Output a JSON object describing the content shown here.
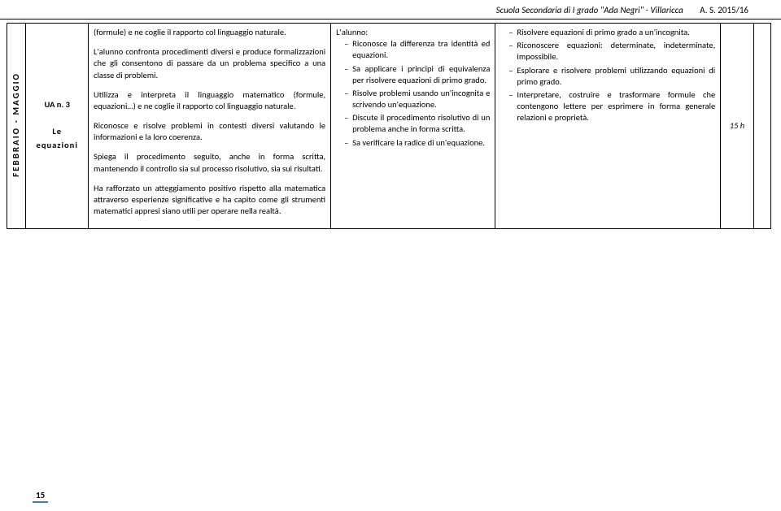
{
  "header": {
    "school": "Scuola Secondaria di I grado \"Ada Negri\" - Villaricca",
    "year": "A. S. 2015/16"
  },
  "row": {
    "period": "FEBBRAIO - MAGGIO",
    "ua_num": "UA n. 3",
    "ua_title": "Le equazioni",
    "desc_p1": "(formule) e ne coglie il rapporto col linguaggio naturale.",
    "desc_p2": "L'alunno confronta procedimenti diversi e produce formalizzazioni che gli consentono di passare da un problema specifico a una classe di problemi.",
    "desc_p3": "Utilizza e interpreta il linguaggio matematico (formule, equazioni…) e ne coglie il rapporto col linguaggio naturale.",
    "desc_p4": "Riconosce e risolve problemi in contesti diversi valutando le informazioni e la loro coerenza.",
    "desc_p5": "Spiega il procedimento seguito, anche in forma scritta, mantenendo il controllo sia sul processo risolutivo, sia sui risultati.",
    "desc_p6": "Ha rafforzato un atteggiamento positivo rispetto alla matematica attraverso esperienze significative e ha capito come gli strumenti matematici appresi siano utili per operare nella realtà.",
    "alunno_h": "L'alunno:",
    "alunno_items": {
      "i0": "Riconosce la differenza tra identità ed equazioni.",
      "i1": "Sa applicare i principi di equivalenza per risolvere equazioni di primo grado.",
      "i2": "Risolve problemi usando un'incognita e scrivendo un'equazione.",
      "i3": "Discute il procedimento risolutivo di un problema anche in forma scritta.",
      "i4": "Sa verificare la radice di un'equazione."
    },
    "obj_items": {
      "i0": "Risolvere equazioni di primo grado a un'incognita.",
      "i1": "Riconoscere equazioni: determinate, indeterminate, impossibile.",
      "i2": "Esplorare e risolvere problemi utilizzando equazioni di primo grado.",
      "i3": "Interpretare, costruire e trasformare formule che contengono lettere per esprimere in forma generale relazioni e proprietà."
    },
    "hours": "15 h"
  },
  "footer": {
    "page": "15"
  }
}
